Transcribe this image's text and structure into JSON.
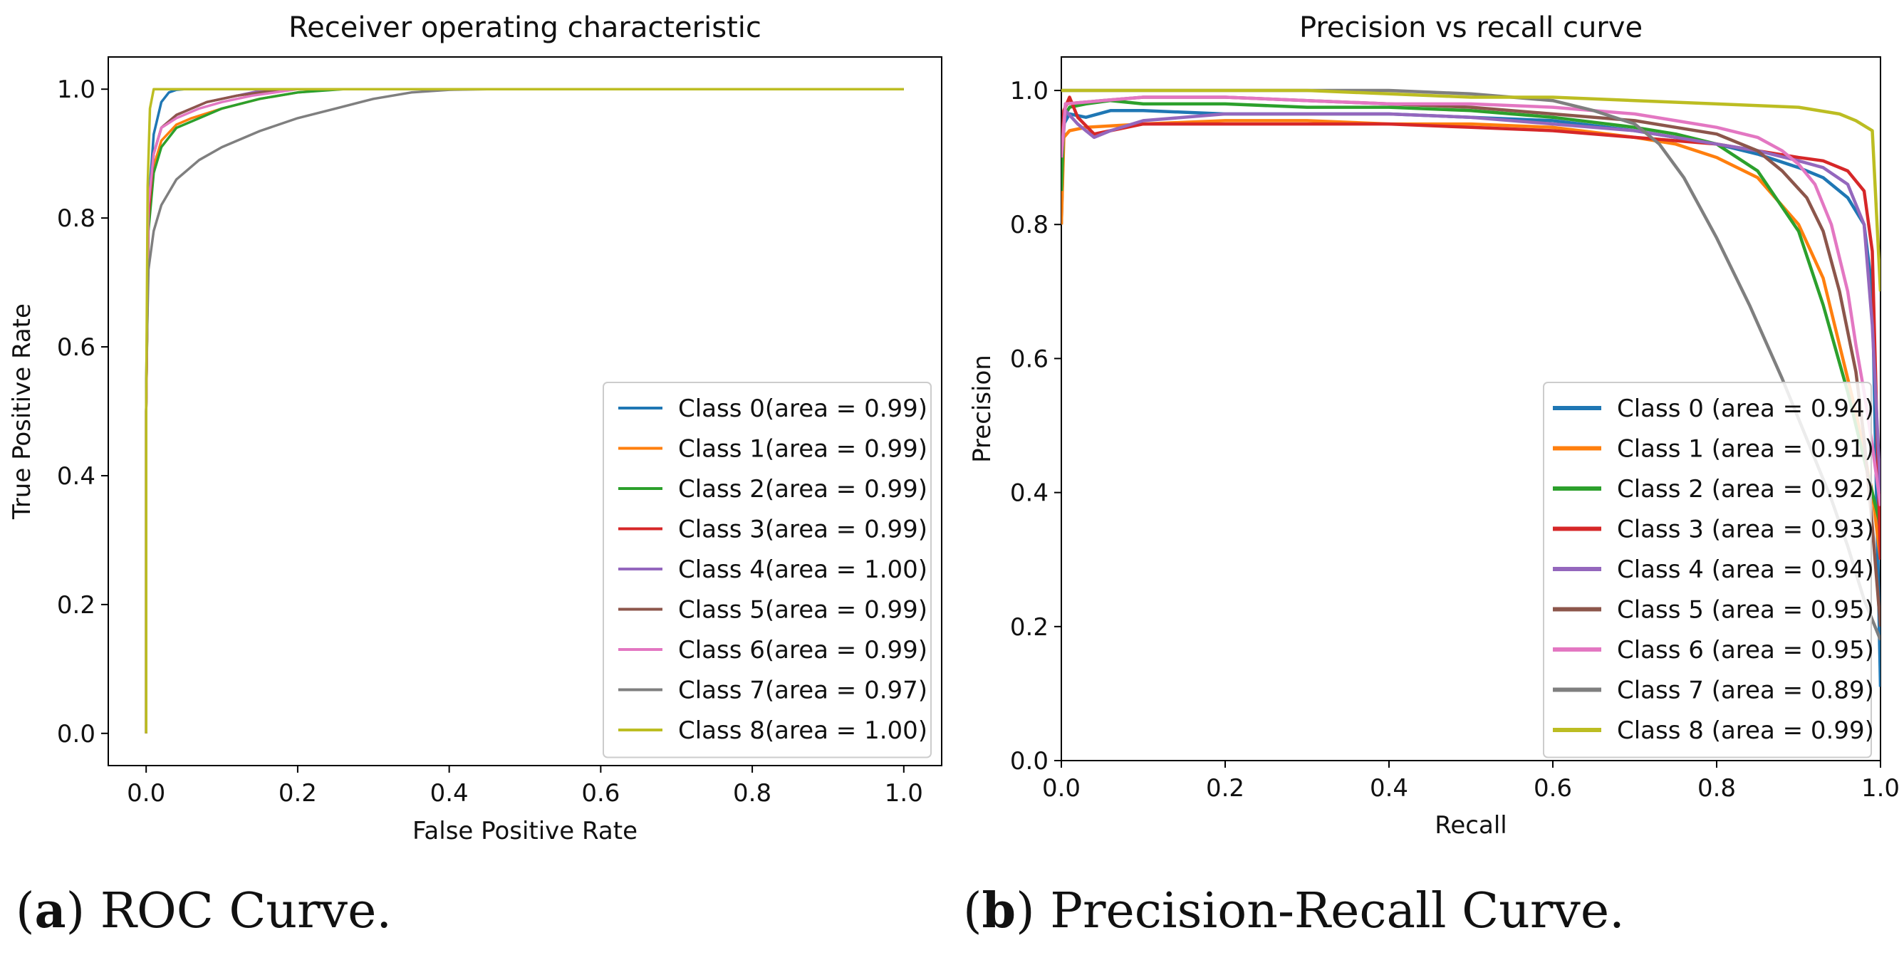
{
  "chart_data": [
    {
      "type": "line",
      "title": "Receiver operating characteristic",
      "xlabel": "False Positive Rate",
      "ylabel": "True Positive Rate",
      "xlim": [
        -0.05,
        1.05
      ],
      "ylim": [
        -0.05,
        1.05
      ],
      "xticks": [
        "0.0",
        "0.2",
        "0.4",
        "0.6",
        "0.8",
        "1.0"
      ],
      "yticks": [
        "0.0",
        "0.2",
        "0.4",
        "0.6",
        "0.8",
        "1.0"
      ],
      "legend_position": "lower-right",
      "series": [
        {
          "name": "Class 0(area = 0.99)",
          "color": "#1f77b4",
          "x": [
            0,
            0,
            0.002,
            0.005,
            0.01,
            0.02,
            0.03,
            0.04,
            0.05,
            1.0
          ],
          "y": [
            0,
            0.5,
            0.75,
            0.85,
            0.93,
            0.98,
            0.995,
            0.999,
            1.0,
            1.0
          ]
        },
        {
          "name": "Class 1(area = 0.99)",
          "color": "#ff7f0e",
          "x": [
            0,
            0,
            0.003,
            0.01,
            0.02,
            0.04,
            0.06,
            0.1,
            0.15,
            0.2,
            0.25,
            1.0
          ],
          "y": [
            0,
            0.5,
            0.8,
            0.88,
            0.92,
            0.945,
            0.955,
            0.97,
            0.985,
            0.995,
            1.0,
            1.0
          ]
        },
        {
          "name": "Class 2(area = 0.99)",
          "color": "#2ca02c",
          "x": [
            0,
            0,
            0.003,
            0.01,
            0.02,
            0.04,
            0.06,
            0.1,
            0.15,
            0.2,
            0.26,
            1.0
          ],
          "y": [
            0,
            0.5,
            0.78,
            0.87,
            0.91,
            0.94,
            0.95,
            0.97,
            0.985,
            0.995,
            1.0,
            1.0
          ]
        },
        {
          "name": "Class 3(area = 0.99)",
          "color": "#d62728",
          "x": [
            0,
            0,
            0.003,
            0.01,
            0.02,
            0.04,
            0.08,
            0.12,
            0.18,
            1.0
          ],
          "y": [
            0,
            0.5,
            0.8,
            0.9,
            0.94,
            0.96,
            0.98,
            0.99,
            1.0,
            1.0
          ]
        },
        {
          "name": "Class 4(area = 1.00)",
          "color": "#9467bd",
          "x": [
            0,
            0,
            0.003,
            0.01,
            0.02,
            0.04,
            0.08,
            0.12,
            0.16,
            1.0
          ],
          "y": [
            0,
            0.5,
            0.82,
            0.9,
            0.94,
            0.96,
            0.98,
            0.99,
            1.0,
            1.0
          ]
        },
        {
          "name": "Class 5(area = 0.99)",
          "color": "#8c564b",
          "x": [
            0,
            0,
            0.003,
            0.01,
            0.02,
            0.04,
            0.08,
            0.12,
            0.18,
            1.0
          ],
          "y": [
            0,
            0.5,
            0.82,
            0.9,
            0.94,
            0.96,
            0.98,
            0.99,
            1.0,
            1.0
          ]
        },
        {
          "name": "Class 6(area = 0.99)",
          "color": "#e377c2",
          "x": [
            0,
            0,
            0.003,
            0.01,
            0.02,
            0.04,
            0.07,
            0.1,
            0.14,
            0.2,
            1.0
          ],
          "y": [
            0,
            0.5,
            0.82,
            0.9,
            0.94,
            0.955,
            0.97,
            0.98,
            0.99,
            1.0,
            1.0
          ]
        },
        {
          "name": "Class 7(area = 0.97)",
          "color": "#7f7f7f",
          "x": [
            0,
            0,
            0.003,
            0.01,
            0.02,
            0.04,
            0.07,
            0.1,
            0.15,
            0.2,
            0.25,
            0.3,
            0.35,
            0.4,
            0.45,
            0.5,
            1.0
          ],
          "y": [
            0,
            0.55,
            0.72,
            0.78,
            0.82,
            0.86,
            0.89,
            0.91,
            0.935,
            0.955,
            0.97,
            0.985,
            0.995,
            0.999,
            1.0,
            1.0,
            1.0
          ]
        },
        {
          "name": "Class 8(area = 1.00)",
          "color": "#bcbd22",
          "x": [
            0,
            0,
            0.002,
            0.005,
            0.01,
            1.0
          ],
          "y": [
            0,
            0.5,
            0.85,
            0.97,
            1.0,
            1.0
          ]
        }
      ]
    },
    {
      "type": "line",
      "title": "Precision vs recall curve",
      "xlabel": "Recall",
      "ylabel": "Precision",
      "xlim": [
        0.0,
        1.0
      ],
      "ylim": [
        0.0,
        1.05
      ],
      "xticks": [
        "0.0",
        "0.2",
        "0.4",
        "0.6",
        "0.8",
        "1.0"
      ],
      "yticks": [
        "0.0",
        "0.2",
        "0.4",
        "0.6",
        "0.8",
        "1.0"
      ],
      "legend_position": "lower-right",
      "series": [
        {
          "name": "Class 0 (area = 0.94)",
          "color": "#1f77b4",
          "x": [
            0,
            0.003,
            0.01,
            0.03,
            0.06,
            0.1,
            0.2,
            0.3,
            0.4,
            0.5,
            0.6,
            0.7,
            0.8,
            0.85,
            0.9,
            0.93,
            0.96,
            0.98,
            0.99,
            1.0
          ],
          "y": [
            0.8,
            0.95,
            0.965,
            0.96,
            0.97,
            0.97,
            0.965,
            0.965,
            0.965,
            0.96,
            0.955,
            0.94,
            0.92,
            0.905,
            0.885,
            0.87,
            0.84,
            0.8,
            0.7,
            0.11
          ]
        },
        {
          "name": "Class 1 (area = 0.91)",
          "color": "#ff7f0e",
          "x": [
            0,
            0.003,
            0.01,
            0.03,
            0.1,
            0.2,
            0.3,
            0.4,
            0.5,
            0.6,
            0.7,
            0.75,
            0.8,
            0.85,
            0.9,
            0.93,
            0.95,
            0.97,
            0.99,
            1.0
          ],
          "y": [
            0.8,
            0.93,
            0.94,
            0.945,
            0.95,
            0.955,
            0.955,
            0.95,
            0.95,
            0.945,
            0.93,
            0.92,
            0.9,
            0.87,
            0.8,
            0.72,
            0.62,
            0.52,
            0.4,
            0.3
          ]
        },
        {
          "name": "Class 2 (area = 0.92)",
          "color": "#2ca02c",
          "x": [
            0,
            0.003,
            0.01,
            0.03,
            0.06,
            0.1,
            0.2,
            0.3,
            0.4,
            0.5,
            0.6,
            0.7,
            0.75,
            0.8,
            0.85,
            0.9,
            0.93,
            0.96,
            0.98,
            1.0
          ],
          "y": [
            0.85,
            0.96,
            0.975,
            0.98,
            0.985,
            0.98,
            0.98,
            0.975,
            0.975,
            0.97,
            0.96,
            0.945,
            0.935,
            0.92,
            0.88,
            0.79,
            0.68,
            0.55,
            0.45,
            0.35
          ]
        },
        {
          "name": "Class 3 (area = 0.93)",
          "color": "#d62728",
          "x": [
            0,
            0.003,
            0.01,
            0.02,
            0.04,
            0.06,
            0.1,
            0.2,
            0.3,
            0.4,
            0.5,
            0.6,
            0.7,
            0.8,
            0.85,
            0.9,
            0.93,
            0.96,
            0.98,
            0.99,
            1.0
          ],
          "y": [
            0.9,
            0.97,
            0.99,
            0.96,
            0.935,
            0.94,
            0.95,
            0.95,
            0.95,
            0.95,
            0.945,
            0.94,
            0.93,
            0.92,
            0.91,
            0.9,
            0.895,
            0.88,
            0.85,
            0.76,
            0.3
          ]
        },
        {
          "name": "Class 4 (area = 0.94)",
          "color": "#9467bd",
          "x": [
            0,
            0.005,
            0.02,
            0.04,
            0.06,
            0.1,
            0.2,
            0.3,
            0.4,
            0.5,
            0.6,
            0.7,
            0.8,
            0.85,
            0.9,
            0.93,
            0.96,
            0.98,
            0.99,
            1.0
          ],
          "y": [
            0.9,
            0.97,
            0.95,
            0.93,
            0.94,
            0.955,
            0.965,
            0.965,
            0.965,
            0.96,
            0.95,
            0.94,
            0.92,
            0.91,
            0.895,
            0.885,
            0.86,
            0.8,
            0.65,
            0.4
          ]
        },
        {
          "name": "Class 5 (area = 0.95)",
          "color": "#8c564b",
          "x": [
            0,
            0.005,
            0.05,
            0.1,
            0.2,
            0.3,
            0.4,
            0.5,
            0.6,
            0.7,
            0.75,
            0.8,
            0.85,
            0.88,
            0.91,
            0.93,
            0.95,
            0.97,
            0.98,
            0.99,
            1.0
          ],
          "y": [
            0.9,
            0.98,
            0.985,
            0.99,
            0.99,
            0.985,
            0.98,
            0.975,
            0.965,
            0.955,
            0.945,
            0.935,
            0.91,
            0.88,
            0.84,
            0.79,
            0.7,
            0.58,
            0.48,
            0.35,
            0.2
          ]
        },
        {
          "name": "Class 6 (area = 0.95)",
          "color": "#e377c2",
          "x": [
            0,
            0.005,
            0.05,
            0.1,
            0.2,
            0.3,
            0.4,
            0.5,
            0.6,
            0.7,
            0.75,
            0.8,
            0.85,
            0.88,
            0.9,
            0.92,
            0.94,
            0.96,
            0.97,
            0.98,
            0.99,
            1.0
          ],
          "y": [
            0.9,
            0.98,
            0.985,
            0.99,
            0.99,
            0.985,
            0.98,
            0.98,
            0.975,
            0.965,
            0.955,
            0.945,
            0.93,
            0.91,
            0.89,
            0.86,
            0.8,
            0.7,
            0.62,
            0.55,
            0.47,
            0.38
          ]
        },
        {
          "name": "Class 7 (area = 0.89)",
          "color": "#7f7f7f",
          "x": [
            0,
            0.1,
            0.2,
            0.3,
            0.4,
            0.5,
            0.55,
            0.6,
            0.65,
            0.7,
            0.73,
            0.76,
            0.8,
            0.84,
            0.88,
            0.91,
            0.94,
            0.96,
            0.98,
            1.0
          ],
          "y": [
            1.0,
            1.0,
            1.0,
            1.0,
            1.0,
            0.995,
            0.99,
            0.985,
            0.97,
            0.95,
            0.92,
            0.87,
            0.78,
            0.68,
            0.57,
            0.48,
            0.39,
            0.32,
            0.24,
            0.18
          ]
        },
        {
          "name": "Class 8 (area = 0.99)",
          "color": "#bcbd22",
          "x": [
            0,
            0.1,
            0.2,
            0.3,
            0.4,
            0.5,
            0.6,
            0.7,
            0.8,
            0.9,
            0.95,
            0.97,
            0.99,
            1.0
          ],
          "y": [
            1.0,
            1.0,
            1.0,
            1.0,
            0.995,
            0.99,
            0.99,
            0.985,
            0.98,
            0.975,
            0.965,
            0.955,
            0.94,
            0.7
          ]
        }
      ]
    }
  ],
  "captions": {
    "a_label": "a",
    "a_text": "ROC Curve.",
    "b_label": "b",
    "b_text": "Precision-Recall Curve."
  }
}
